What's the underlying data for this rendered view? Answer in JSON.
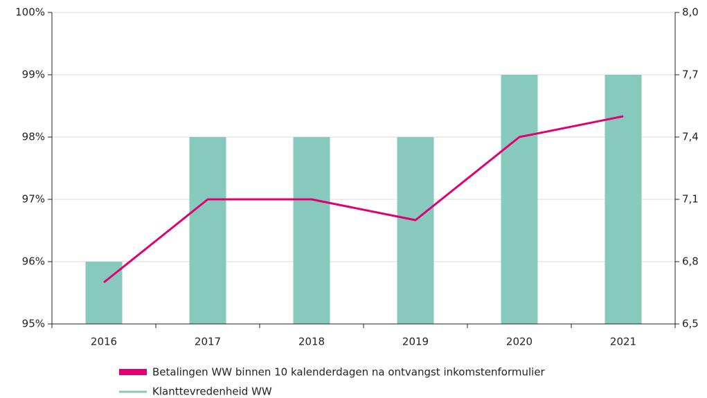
{
  "chart_data": {
    "type": "bar_line",
    "categories": [
      "2016",
      "2017",
      "2018",
      "2019",
      "2020",
      "2021"
    ],
    "series": [
      {
        "name": "Betalingen WW binnen 10 kalenderdagen na ontvangst inkomstenformulier",
        "color": "#88c9bd",
        "legend_color": "#e0006f",
        "values": [
          96,
          98,
          98,
          98,
          99,
          99
        ]
      },
      {
        "name": "Klanttevredenheid WW",
        "color": "#e0006f",
        "legend_color": "#88c9bd",
        "axis": "y2",
        "values": [
          6.7,
          7.1,
          7.1,
          7.0,
          7.4,
          7.5
        ]
      }
    ],
    "ylim": [
      95,
      100
    ],
    "yticks": [
      {
        "value": 95,
        "label": "95%"
      },
      {
        "value": 96,
        "label": "96%"
      },
      {
        "value": 97,
        "label": "97%"
      },
      {
        "value": 98,
        "label": "98%"
      },
      {
        "value": 99,
        "label": "99%"
      },
      {
        "value": 100,
        "label": "100%"
      }
    ],
    "y2lim": [
      6.5,
      8.0
    ],
    "y2ticks": [
      {
        "value": 6.5,
        "label": "6,5"
      },
      {
        "value": 6.8,
        "label": "6,8"
      },
      {
        "value": 7.1,
        "label": "7,1"
      },
      {
        "value": 7.4,
        "label": "7,4"
      },
      {
        "value": 7.7,
        "label": "7,7"
      },
      {
        "value": 8.0,
        "label": "8,0"
      }
    ],
    "grid": true
  }
}
